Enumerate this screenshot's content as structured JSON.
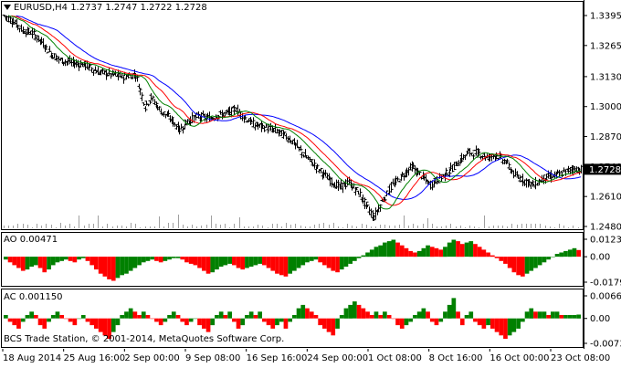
{
  "header": {
    "symbol_line": "EURUSD,H4  1.2737 1.2747 1.2722 1.2728",
    "dropdown_icon": "triangle-down-icon"
  },
  "main": {
    "price_ticks": [
      "1.3395",
      "1.3265",
      "1.3130",
      "1.3000",
      "1.2870",
      "1.2740",
      "1.2610",
      "1.2480"
    ],
    "current_price_tag": "1.2728",
    "ylim": [
      1.248,
      1.3395
    ]
  },
  "ao": {
    "label": "AO 0.00471",
    "ticks": [
      "0.01234",
      "0.00",
      "-0.01798"
    ],
    "ylim": [
      -0.01798,
      0.01234
    ]
  },
  "ac": {
    "label": "AC 0.001150",
    "ticks": [
      "0.006653",
      "0.00",
      "-0.00733"
    ],
    "ylim": [
      -0.00733,
      0.006653
    ]
  },
  "footer": {
    "copyright": "BCS Trade Station, © 2001-2014, MetaQuotes Software Corp.",
    "time_labels": [
      "18 Aug 2014",
      "25 Aug 16:00",
      "2 Sep 00:00",
      "9 Sep 08:00",
      "16 Sep 16:00",
      "24 Sep 00:00",
      "1 Oct 08:00",
      "8 Oct 16:00",
      "16 Oct 00:00",
      "23 Oct 08:00"
    ]
  },
  "colors": {
    "up_histogram": "#008000",
    "down_histogram": "#ff0000",
    "jaw_line": "#0000ff",
    "teeth_line": "#ff0000",
    "lips_line": "#008000",
    "price_bars": "#000000",
    "volume_bars": "#a0a0a0",
    "grid_border": "#000000",
    "price_tag_bg": "#000000",
    "price_tag_text": "#ffffff"
  },
  "chart_data": {
    "type": "ohlc",
    "symbol": "EURUSD",
    "timeframe": "H4",
    "close_path": [
      [
        0,
        1.3395
      ],
      [
        3,
        1.337
      ],
      [
        6,
        1.333
      ],
      [
        9,
        1.332
      ],
      [
        12,
        1.328
      ],
      [
        15,
        1.323
      ],
      [
        18,
        1.32
      ],
      [
        22,
        1.319
      ],
      [
        26,
        1.318
      ],
      [
        30,
        1.315
      ],
      [
        34,
        1.314
      ],
      [
        38,
        1.313
      ],
      [
        42,
        1.314
      ],
      [
        45,
        1.3
      ],
      [
        47,
        1.304
      ],
      [
        50,
        1.298
      ],
      [
        53,
        1.295
      ],
      [
        56,
        1.29
      ],
      [
        59,
        1.294
      ],
      [
        62,
        1.296
      ],
      [
        65,
        1.295
      ],
      [
        68,
        1.296
      ],
      [
        71,
        1.297
      ],
      [
        74,
        1.299
      ],
      [
        77,
        1.295
      ],
      [
        80,
        1.292
      ],
      [
        83,
        1.291
      ],
      [
        86,
        1.29
      ],
      [
        89,
        1.288
      ],
      [
        92,
        1.285
      ],
      [
        95,
        1.28
      ],
      [
        98,
        1.276
      ],
      [
        101,
        1.272
      ],
      [
        104,
        1.268
      ],
      [
        107,
        1.265
      ],
      [
        110,
        1.267
      ],
      [
        113,
        1.263
      ],
      [
        116,
        1.256
      ],
      [
        118,
        1.252
      ],
      [
        121,
        1.26
      ],
      [
        124,
        1.266
      ],
      [
        127,
        1.27
      ],
      [
        130,
        1.274
      ],
      [
        133,
        1.27
      ],
      [
        136,
        1.266
      ],
      [
        139,
        1.269
      ],
      [
        142,
        1.272
      ],
      [
        145,
        1.276
      ],
      [
        148,
        1.28
      ],
      [
        151,
        1.28
      ],
      [
        154,
        1.278
      ],
      [
        157,
        1.279
      ],
      [
        160,
        1.276
      ],
      [
        163,
        1.27
      ],
      [
        166,
        1.268
      ],
      [
        169,
        1.266
      ],
      [
        172,
        1.269
      ],
      [
        175,
        1.27
      ],
      [
        178,
        1.271
      ],
      [
        181,
        1.273
      ],
      [
        184,
        1.2728
      ]
    ],
    "ao_values": [
      -0.002,
      -0.004,
      -0.006,
      -0.008,
      -0.01,
      -0.009,
      -0.007,
      -0.006,
      -0.008,
      -0.011,
      -0.009,
      -0.006,
      -0.004,
      -0.003,
      -0.002,
      -0.003,
      -0.004,
      -0.002,
      -0.001,
      -0.003,
      -0.006,
      -0.009,
      -0.012,
      -0.014,
      -0.016,
      -0.017,
      -0.015,
      -0.013,
      -0.012,
      -0.01,
      -0.008,
      -0.006,
      -0.004,
      -0.003,
      -0.002,
      -0.003,
      -0.004,
      -0.003,
      -0.002,
      -0.001,
      -0.001,
      -0.002,
      -0.004,
      -0.005,
      -0.006,
      -0.008,
      -0.01,
      -0.012,
      -0.011,
      -0.009,
      -0.007,
      -0.006,
      -0.005,
      -0.006,
      -0.008,
      -0.009,
      -0.008,
      -0.007,
      -0.006,
      -0.005,
      -0.006,
      -0.008,
      -0.01,
      -0.012,
      -0.013,
      -0.014,
      -0.012,
      -0.01,
      -0.008,
      -0.006,
      -0.004,
      -0.003,
      -0.002,
      -0.004,
      -0.006,
      -0.008,
      -0.01,
      -0.011,
      -0.009,
      -0.007,
      -0.005,
      -0.003,
      -0.001,
      0.001,
      0.003,
      0.005,
      0.007,
      0.008,
      0.01,
      0.011,
      0.012,
      0.01,
      0.008,
      0.006,
      0.004,
      0.003,
      0.004,
      0.006,
      0.008,
      0.007,
      0.006,
      0.005,
      0.007,
      0.01,
      0.012,
      0.011,
      0.009,
      0.01,
      0.011,
      0.009,
      0.007,
      0.005,
      0.003,
      0.001,
      -0.001,
      -0.003,
      -0.005,
      -0.008,
      -0.011,
      -0.013,
      -0.014,
      -0.012,
      -0.01,
      -0.008,
      -0.006,
      -0.004,
      -0.002,
      0.0,
      0.002,
      0.003,
      0.004,
      0.005,
      0.006,
      0.00471
    ],
    "ac_values": [
      0.001,
      -0.001,
      -0.002,
      -0.003,
      -0.001,
      0.001,
      0.002,
      0.001,
      -0.002,
      -0.003,
      -0.001,
      0.001,
      0.002,
      0.001,
      0.0,
      -0.001,
      -0.002,
      0.0,
      0.001,
      -0.001,
      -0.002,
      -0.003,
      -0.004,
      -0.005,
      -0.006,
      -0.004,
      -0.002,
      0.001,
      0.002,
      0.003,
      0.002,
      0.001,
      0.002,
      0.001,
      0.0,
      -0.001,
      -0.002,
      -0.001,
      0.001,
      0.002,
      0.001,
      -0.001,
      -0.002,
      -0.001,
      0.0,
      -0.002,
      -0.003,
      -0.004,
      -0.002,
      0.001,
      0.002,
      0.001,
      0.002,
      -0.001,
      -0.003,
      -0.002,
      0.001,
      0.002,
      0.001,
      0.002,
      -0.001,
      -0.002,
      -0.003,
      -0.002,
      -0.001,
      -0.003,
      -0.001,
      0.001,
      0.003,
      0.004,
      0.003,
      0.002,
      0.001,
      -0.002,
      -0.003,
      -0.004,
      -0.005,
      -0.003,
      0.001,
      0.003,
      0.004,
      0.005,
      0.004,
      0.003,
      0.002,
      0.001,
      0.002,
      0.001,
      0.002,
      0.001,
      0.0,
      -0.002,
      -0.003,
      -0.002,
      -0.001,
      0.001,
      0.002,
      0.003,
      0.002,
      -0.001,
      -0.002,
      -0.001,
      0.002,
      0.004,
      0.006,
      0.002,
      -0.002,
      0.001,
      0.002,
      -0.001,
      -0.002,
      -0.003,
      -0.002,
      -0.003,
      -0.004,
      -0.005,
      -0.006,
      -0.005,
      -0.004,
      -0.003,
      -0.001,
      0.002,
      0.003,
      0.002,
      0.002,
      0.002,
      0.001,
      0.002,
      0.002,
      0.001,
      0.001,
      0.001,
      0.001,
      0.00115
    ]
  }
}
